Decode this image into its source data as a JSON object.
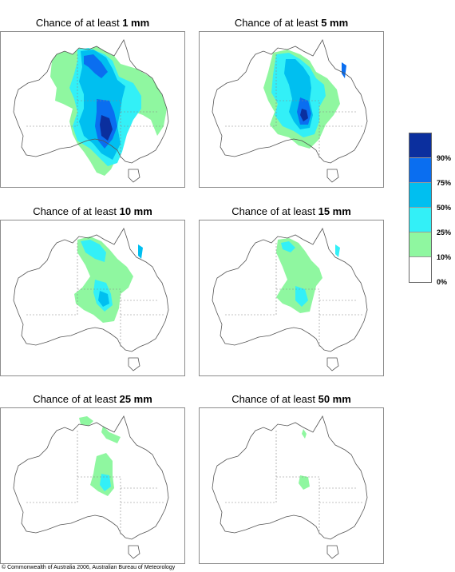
{
  "panels": [
    {
      "title_prefix": "Chance of at least ",
      "amount": "1 mm"
    },
    {
      "title_prefix": "Chance of at least ",
      "amount": "5 mm"
    },
    {
      "title_prefix": "Chance of at least ",
      "amount": "10 mm"
    },
    {
      "title_prefix": "Chance of at least ",
      "amount": "15 mm"
    },
    {
      "title_prefix": "Chance of at least ",
      "amount": "25 mm"
    },
    {
      "title_prefix": "Chance of at least ",
      "amount": "50 mm"
    }
  ],
  "legend": {
    "classes": [
      {
        "range": "90%-100%",
        "color": "#0b2f9e"
      },
      {
        "range": "75%-90%",
        "color": "#0a6ef0"
      },
      {
        "range": "50%-75%",
        "color": "#00bff0"
      },
      {
        "range": "25%-50%",
        "color": "#33f0f7"
      },
      {
        "range": "10%-25%",
        "color": "#8ff7a0"
      },
      {
        "range": "0%-10%",
        "color": "#ffffff"
      }
    ],
    "labels": [
      "90%",
      "75%",
      "50%",
      "25%",
      "10%",
      "0%"
    ]
  },
  "copyright": "© Commonwealth of Australia 2006, Australian Bureau of Meteorology"
}
